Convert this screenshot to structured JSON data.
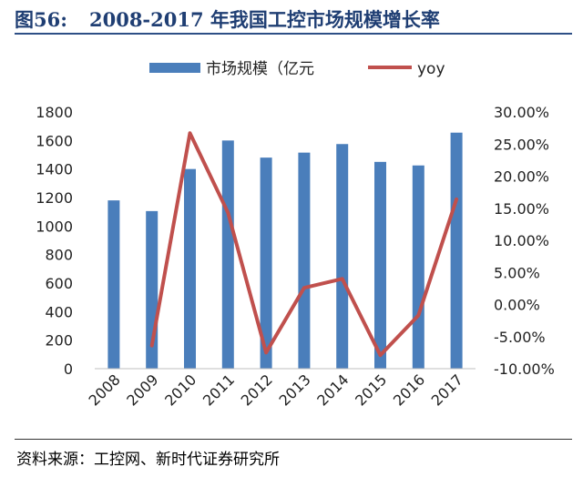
{
  "figure": {
    "number": "图56:",
    "title": "2008-2017 年我国工控市场规模增长率"
  },
  "source": "资料来源：工控网、新时代证券研究所",
  "colors": {
    "bar": "#4a7ebb",
    "line": "#c0504d",
    "title": "#1f3e73"
  },
  "chart_data": {
    "type": "bar",
    "title": "",
    "categories": [
      "2008",
      "2009",
      "2010",
      "2011",
      "2012",
      "2013",
      "2014",
      "2015",
      "2016",
      "2017"
    ],
    "series": [
      {
        "name": "市场规模（亿元",
        "type": "bar",
        "axis": "left",
        "values": [
          1180,
          1105,
          1400,
          1600,
          1480,
          1515,
          1575,
          1450,
          1425,
          1655
        ]
      },
      {
        "name": "yoy",
        "type": "line",
        "axis": "right",
        "values": [
          null,
          -6.4,
          26.7,
          14.3,
          -7.5,
          2.6,
          4.0,
          -7.9,
          -1.7,
          16.4
        ]
      }
    ],
    "y_left": {
      "min": 0,
      "max": 1800,
      "ticks": [
        0,
        200,
        400,
        600,
        800,
        1000,
        1200,
        1400,
        1600,
        1800
      ]
    },
    "y_right": {
      "min": -10,
      "max": 30,
      "ticks": [
        -10,
        -5,
        0,
        5,
        10,
        15,
        20,
        25,
        30
      ],
      "tick_labels": [
        "-10.00%",
        "-5.00%",
        "0.00%",
        "5.00%",
        "10.00%",
        "15.00%",
        "20.00%",
        "25.00%",
        "30.00%"
      ]
    },
    "legend": {
      "placement": "top-center"
    },
    "grid": false
  }
}
